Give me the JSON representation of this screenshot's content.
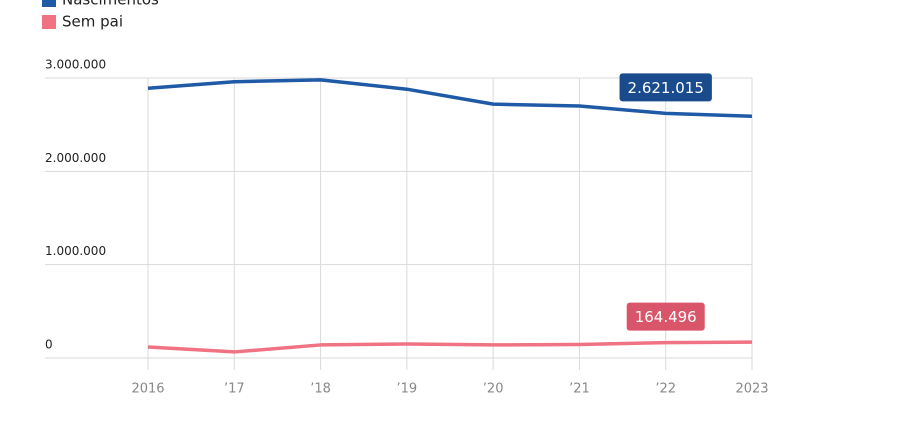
{
  "chart_data": {
    "type": "line",
    "categories": [
      "2016",
      "’17",
      "’18",
      "’19",
      "’20",
      "’21",
      "’22",
      "2023"
    ],
    "series": [
      {
        "name": "Nascimentos",
        "color": "#1f5aa6",
        "label_color": "#1a4b8c",
        "values": [
          2890000,
          2960000,
          2980000,
          2880000,
          2720000,
          2700000,
          2621015,
          2590000
        ],
        "value_labels": [
          null,
          null,
          null,
          null,
          null,
          null,
          "2.621.015",
          null
        ]
      },
      {
        "name": "Sem pai",
        "color": "#f07383",
        "label_color": "#d9566a",
        "values": [
          118000,
          65000,
          140000,
          150000,
          140000,
          145000,
          164496,
          170000
        ],
        "value_labels": [
          null,
          null,
          null,
          null,
          null,
          null,
          "164.496",
          null
        ]
      }
    ],
    "ylim": [
      0,
      3000000
    ],
    "yticks": [
      0,
      {
        "value": 1000000,
        "label": "1.000.000"
      },
      {
        "value": 2000000,
        "label": "2.000.000"
      },
      {
        "value": 3000000,
        "label": "3.000.000"
      }
    ],
    "grid": true
  }
}
